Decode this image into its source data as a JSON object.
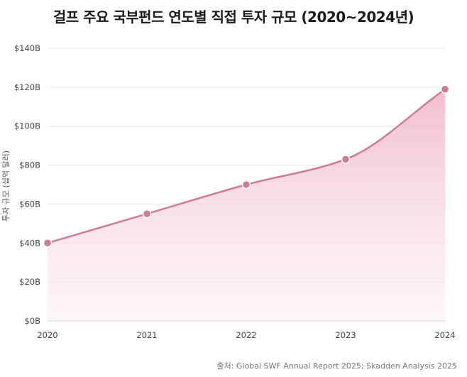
{
  "chart_data": {
    "type": "area",
    "title": "걸프 주요 국부펀드 연도별 직접 투자 규모 (2020~2024년)",
    "ylabel": "투자 규모 (십억 달러)",
    "xlabel": "",
    "categories": [
      "2020",
      "2021",
      "2022",
      "2023",
      "2024"
    ],
    "values": [
      40,
      55,
      70,
      83,
      119
    ],
    "y_ticks": [
      "$0B",
      "$20B",
      "$40B",
      "$60B",
      "$80B",
      "$100B",
      "$120B",
      "$140B"
    ],
    "ylim": [
      0,
      140
    ],
    "grid": true,
    "legend": "none",
    "line_color": "#d07a98",
    "fill_color": "#f3c6d6",
    "source": "출처: Global SWF Annual Report 2025; Skadden Analysis 2025"
  }
}
